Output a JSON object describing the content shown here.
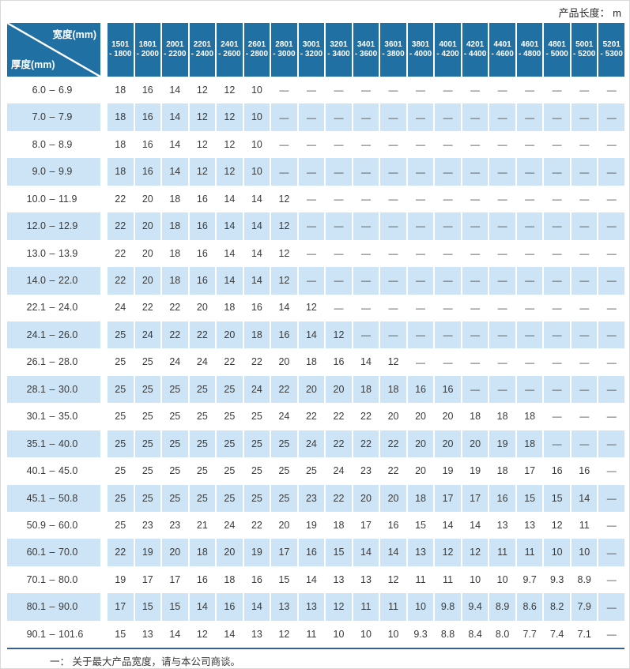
{
  "page": {
    "unit_label": "产品长度： m",
    "footnote": "一： 关于最大产品宽度，请与本公司商谈。"
  },
  "colors": {
    "header_bg": "#2170a4",
    "stripe_bg": "#cce4f5",
    "text_color": "#3a3a3a",
    "border_color": "#35618c"
  },
  "table": {
    "corner": {
      "width_label": "宽度(mm)",
      "thickness_label": "厚度(mm)"
    },
    "range_separator": "–",
    "columns": [
      {
        "line1": "1501",
        "line2": "- 1800"
      },
      {
        "line1": "1801",
        "line2": "- 2000"
      },
      {
        "line1": "2001",
        "line2": "- 2200"
      },
      {
        "line1": "2201",
        "line2": "- 2400"
      },
      {
        "line1": "2401",
        "line2": "- 2600"
      },
      {
        "line1": "2601",
        "line2": "- 2800"
      },
      {
        "line1": "2801",
        "line2": "- 3000"
      },
      {
        "line1": "3001",
        "line2": "- 3200"
      },
      {
        "line1": "3201",
        "line2": "- 3400"
      },
      {
        "line1": "3401",
        "line2": "- 3600"
      },
      {
        "line1": "3601",
        "line2": "- 3800"
      },
      {
        "line1": "3801",
        "line2": "- 4000"
      },
      {
        "line1": "4001",
        "line2": "- 4200"
      },
      {
        "line1": "4201",
        "line2": "- 4400"
      },
      {
        "line1": "4401",
        "line2": "- 4600"
      },
      {
        "line1": "4601",
        "line2": "- 4800"
      },
      {
        "line1": "4801",
        "line2": "- 5000"
      },
      {
        "line1": "5001",
        "line2": "- 5200"
      },
      {
        "line1": "5201",
        "line2": "- 5300"
      }
    ],
    "rows": [
      {
        "min": "6.0",
        "max": "6.9",
        "values": [
          "18",
          "16",
          "14",
          "12",
          "12",
          "10",
          "—",
          "—",
          "—",
          "—",
          "—",
          "—",
          "—",
          "—",
          "—",
          "—",
          "—",
          "—",
          "—"
        ]
      },
      {
        "min": "7.0",
        "max": "7.9",
        "values": [
          "18",
          "16",
          "14",
          "12",
          "12",
          "10",
          "—",
          "—",
          "—",
          "—",
          "—",
          "—",
          "—",
          "—",
          "—",
          "—",
          "—",
          "—",
          "—"
        ]
      },
      {
        "min": "8.0",
        "max": "8.9",
        "values": [
          "18",
          "16",
          "14",
          "12",
          "12",
          "10",
          "—",
          "—",
          "—",
          "—",
          "—",
          "—",
          "—",
          "—",
          "—",
          "—",
          "—",
          "—",
          "—"
        ]
      },
      {
        "min": "9.0",
        "max": "9.9",
        "values": [
          "18",
          "16",
          "14",
          "12",
          "12",
          "10",
          "—",
          "—",
          "—",
          "—",
          "—",
          "—",
          "—",
          "—",
          "—",
          "—",
          "—",
          "—",
          "—"
        ]
      },
      {
        "min": "10.0",
        "max": "11.9",
        "values": [
          "22",
          "20",
          "18",
          "16",
          "14",
          "14",
          "12",
          "—",
          "—",
          "—",
          "—",
          "—",
          "—",
          "—",
          "—",
          "—",
          "—",
          "—",
          "—"
        ]
      },
      {
        "min": "12.0",
        "max": "12.9",
        "values": [
          "22",
          "20",
          "18",
          "16",
          "14",
          "14",
          "12",
          "—",
          "—",
          "—",
          "—",
          "—",
          "—",
          "—",
          "—",
          "—",
          "—",
          "—",
          "—"
        ]
      },
      {
        "min": "13.0",
        "max": "13.9",
        "values": [
          "22",
          "20",
          "18",
          "16",
          "14",
          "14",
          "12",
          "—",
          "—",
          "—",
          "—",
          "—",
          "—",
          "—",
          "—",
          "—",
          "—",
          "—",
          "—"
        ]
      },
      {
        "min": "14.0",
        "max": "22.0",
        "values": [
          "22",
          "20",
          "18",
          "16",
          "14",
          "14",
          "12",
          "—",
          "—",
          "—",
          "—",
          "—",
          "—",
          "—",
          "—",
          "—",
          "—",
          "—",
          "—"
        ]
      },
      {
        "min": "22.1",
        "max": "24.0",
        "values": [
          "24",
          "22",
          "22",
          "20",
          "18",
          "16",
          "14",
          "12",
          "—",
          "—",
          "—",
          "—",
          "—",
          "—",
          "—",
          "—",
          "—",
          "—",
          "—"
        ]
      },
      {
        "min": "24.1",
        "max": "26.0",
        "values": [
          "25",
          "24",
          "22",
          "22",
          "20",
          "18",
          "16",
          "14",
          "12",
          "—",
          "—",
          "—",
          "—",
          "—",
          "—",
          "—",
          "—",
          "—",
          "—"
        ]
      },
      {
        "min": "26.1",
        "max": "28.0",
        "values": [
          "25",
          "25",
          "24",
          "24",
          "22",
          "22",
          "20",
          "18",
          "16",
          "14",
          "12",
          "—",
          "—",
          "—",
          "—",
          "—",
          "—",
          "—",
          "—"
        ]
      },
      {
        "min": "28.1",
        "max": "30.0",
        "values": [
          "25",
          "25",
          "25",
          "25",
          "25",
          "24",
          "22",
          "20",
          "20",
          "18",
          "18",
          "16",
          "16",
          "—",
          "—",
          "—",
          "—",
          "—",
          "—"
        ]
      },
      {
        "min": "30.1",
        "max": "35.0",
        "values": [
          "25",
          "25",
          "25",
          "25",
          "25",
          "25",
          "24",
          "22",
          "22",
          "22",
          "20",
          "20",
          "20",
          "18",
          "18",
          "18",
          "—",
          "—",
          "—"
        ]
      },
      {
        "min": "35.1",
        "max": "40.0",
        "values": [
          "25",
          "25",
          "25",
          "25",
          "25",
          "25",
          "25",
          "24",
          "22",
          "22",
          "22",
          "20",
          "20",
          "20",
          "19",
          "18",
          "—",
          "—",
          "—"
        ]
      },
      {
        "min": "40.1",
        "max": "45.0",
        "values": [
          "25",
          "25",
          "25",
          "25",
          "25",
          "25",
          "25",
          "25",
          "24",
          "23",
          "22",
          "20",
          "19",
          "19",
          "18",
          "17",
          "16",
          "16",
          "—"
        ]
      },
      {
        "min": "45.1",
        "max": "50.8",
        "values": [
          "25",
          "25",
          "25",
          "25",
          "25",
          "25",
          "25",
          "23",
          "22",
          "20",
          "20",
          "18",
          "17",
          "17",
          "16",
          "15",
          "15",
          "14",
          "—"
        ]
      },
      {
        "min": "50.9",
        "max": "60.0",
        "values": [
          "25",
          "23",
          "23",
          "21",
          "24",
          "22",
          "20",
          "19",
          "18",
          "17",
          "16",
          "15",
          "14",
          "14",
          "13",
          "13",
          "12",
          "11",
          "—"
        ]
      },
      {
        "min": "60.1",
        "max": "70.0",
        "values": [
          "22",
          "19",
          "20",
          "18",
          "20",
          "19",
          "17",
          "16",
          "15",
          "14",
          "14",
          "13",
          "12",
          "12",
          "11",
          "11",
          "10",
          "10",
          "—"
        ]
      },
      {
        "min": "70.1",
        "max": "80.0",
        "values": [
          "19",
          "17",
          "17",
          "16",
          "18",
          "16",
          "15",
          "14",
          "13",
          "13",
          "12",
          "11",
          "11",
          "10",
          "10",
          "9.7",
          "9.3",
          "8.9",
          "—"
        ]
      },
      {
        "min": "80.1",
        "max": "90.0",
        "values": [
          "17",
          "15",
          "15",
          "14",
          "16",
          "14",
          "13",
          "13",
          "12",
          "11",
          "11",
          "10",
          "9.8",
          "9.4",
          "8.9",
          "8.6",
          "8.2",
          "7.9",
          "—"
        ]
      },
      {
        "min": "90.1",
        "max": "101.6",
        "values": [
          "15",
          "13",
          "14",
          "12",
          "14",
          "13",
          "12",
          "11",
          "10",
          "10",
          "10",
          "9.3",
          "8.8",
          "8.4",
          "8.0",
          "7.7",
          "7.4",
          "7.1",
          "—"
        ]
      }
    ]
  }
}
